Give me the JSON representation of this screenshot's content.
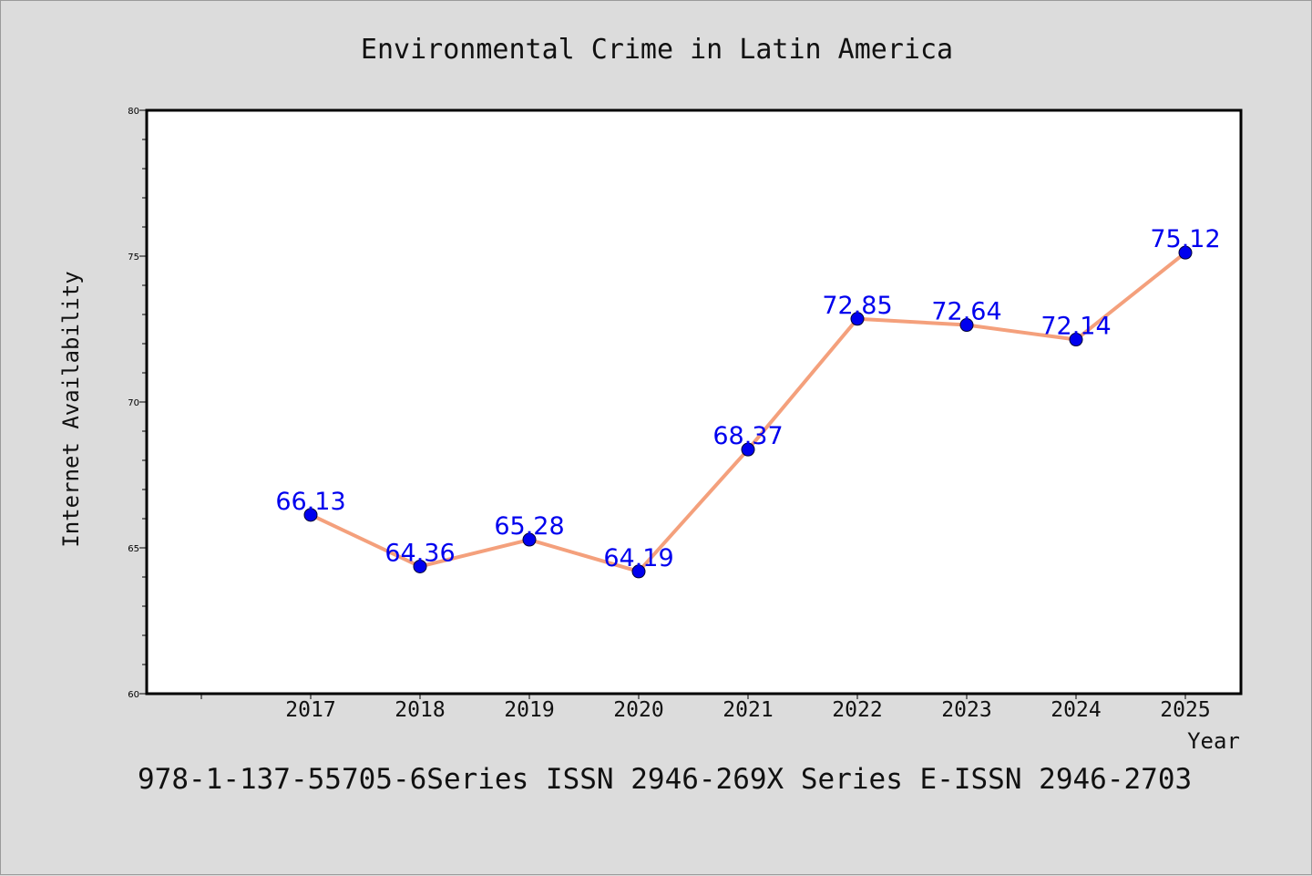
{
  "chart_data": {
    "type": "line",
    "title": "Environmental Crime in Latin America",
    "xlabel": "Year",
    "ylabel": "Internet Availability",
    "categories": [
      "2017",
      "2018",
      "2019",
      "2020",
      "2021",
      "2022",
      "2023",
      "2024",
      "2025"
    ],
    "values": [
      66.13,
      64.36,
      65.28,
      64.19,
      68.37,
      72.85,
      72.64,
      72.14,
      75.12
    ],
    "data_labels": [
      "66.13",
      "64.36",
      "65.28",
      "64.19",
      "68.37",
      "72.85",
      "72.64",
      "72.14",
      "75.12"
    ],
    "ylim": [
      60,
      80
    ],
    "yticks": [
      60,
      65,
      70,
      75,
      80
    ],
    "grid": false,
    "legend": "none",
    "colors": {
      "line": "#f4a07c",
      "marker": "#0000ee",
      "label": "#0000ee"
    }
  },
  "footer": {
    "text": "978-1-137-55705-6Series ISSN 2946-269X Series E-ISSN 2946-2703"
  }
}
